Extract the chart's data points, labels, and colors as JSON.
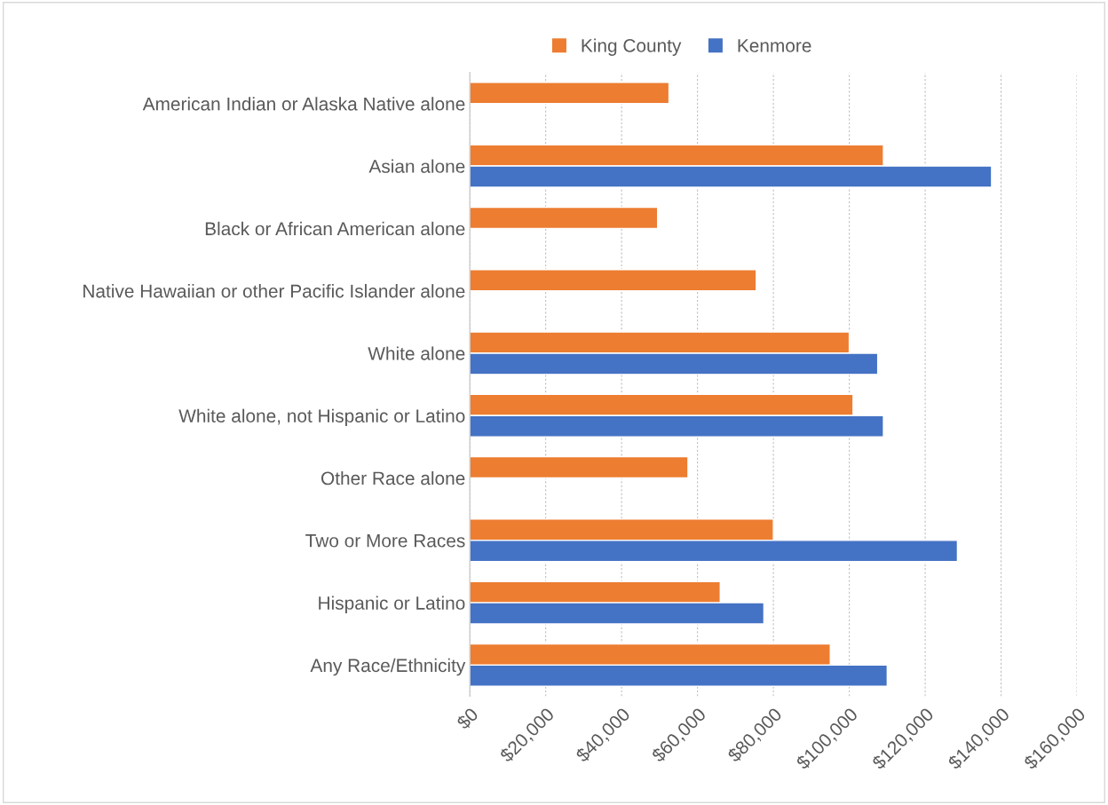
{
  "chart_data": {
    "type": "bar",
    "orientation": "horizontal",
    "categories": [
      "American Indian or Alaska Native alone",
      "Asian alone",
      "Black or African American alone",
      "Native Hawaiian or other Pacific Islander alone",
      "White alone",
      "White alone, not Hispanic or Latino",
      "Other Race alone",
      "Two or More Races",
      "Hispanic or Latino",
      "Any Race/Ethnicity"
    ],
    "series": [
      {
        "name": "King County",
        "color": "#ed7d31",
        "values": [
          52500,
          109000,
          49500,
          75500,
          100000,
          101000,
          57500,
          80000,
          66000,
          95000
        ]
      },
      {
        "name": "Kenmore",
        "color": "#4472c4",
        "values": [
          null,
          137500,
          null,
          null,
          107500,
          109000,
          null,
          128500,
          77500,
          110000
        ]
      }
    ],
    "xlim": [
      0,
      160000
    ],
    "xticks": [
      {
        "value": 0,
        "label": "$0"
      },
      {
        "value": 20000,
        "label": "$20,000"
      },
      {
        "value": 40000,
        "label": "$40,000"
      },
      {
        "value": 60000,
        "label": "$60,000"
      },
      {
        "value": 80000,
        "label": "$80,000"
      },
      {
        "value": 100000,
        "label": "$100,000"
      },
      {
        "value": 120000,
        "label": "$120,000"
      },
      {
        "value": 140000,
        "label": "$140,000"
      },
      {
        "value": 160000,
        "label": "$160,000"
      }
    ],
    "grid": "x",
    "legend": "top"
  }
}
